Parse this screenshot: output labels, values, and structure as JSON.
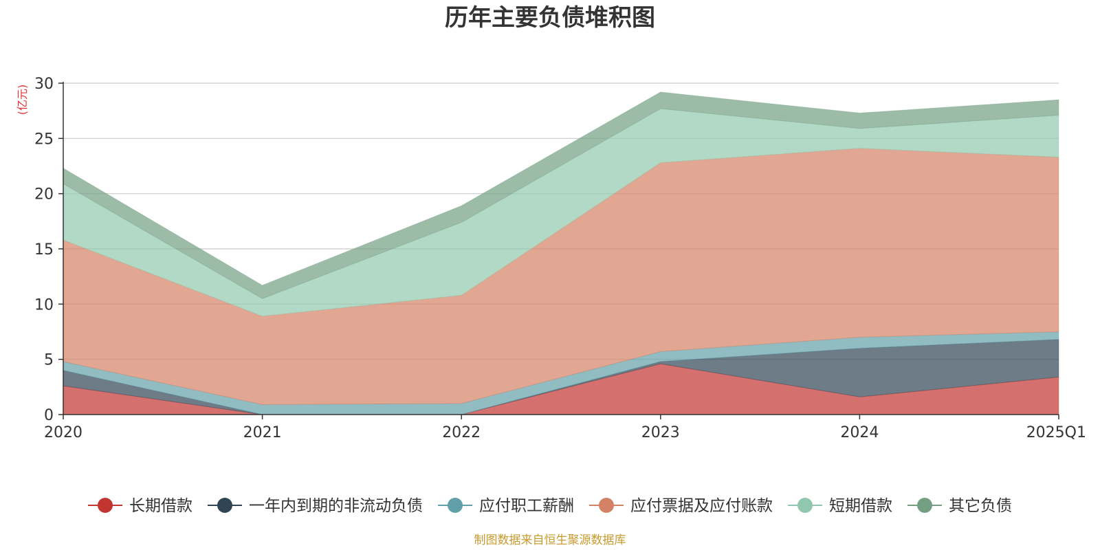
{
  "colors": {
    "title": "#333333",
    "axis": "#333333",
    "grid": "#cccccc",
    "unit": "#e83232",
    "source": "#c99a2e"
  },
  "footer": {
    "source": "制图数据来自恒生聚源数据库"
  },
  "chart_data": {
    "type": "area",
    "stacked": true,
    "title": "历年主要负债堆积图",
    "ylabel": "(亿元)",
    "xlabel": "",
    "ylim": [
      0,
      30
    ],
    "yticks": [
      0,
      5,
      10,
      15,
      20,
      25,
      30
    ],
    "grid": true,
    "legend_position": "bottom",
    "categories": [
      "2020",
      "2021",
      "2022",
      "2023",
      "2024",
      "2025Q1"
    ],
    "series": [
      {
        "name": "长期借款",
        "color": "#c23531",
        "values": [
          2.6,
          0.0,
          0.0,
          4.6,
          1.6,
          3.4
        ]
      },
      {
        "name": "一年内到期的非流动负债",
        "color": "#2f4554",
        "values": [
          1.4,
          0.0,
          0.0,
          0.2,
          4.4,
          3.4
        ]
      },
      {
        "name": "应付职工薪酬",
        "color": "#61a0a8",
        "values": [
          0.8,
          0.9,
          1.0,
          0.9,
          1.0,
          0.7
        ]
      },
      {
        "name": "应付票据及应付账款",
        "color": "#d48265",
        "values": [
          11.0,
          8.0,
          9.8,
          17.1,
          17.1,
          15.8
        ]
      },
      {
        "name": "短期借款",
        "color": "#91c7ae",
        "values": [
          5.1,
          1.6,
          6.6,
          4.9,
          1.8,
          3.8
        ]
      },
      {
        "name": "其它负债",
        "color": "#749f83",
        "values": [
          1.4,
          1.2,
          1.5,
          1.5,
          1.4,
          1.4
        ]
      }
    ]
  }
}
